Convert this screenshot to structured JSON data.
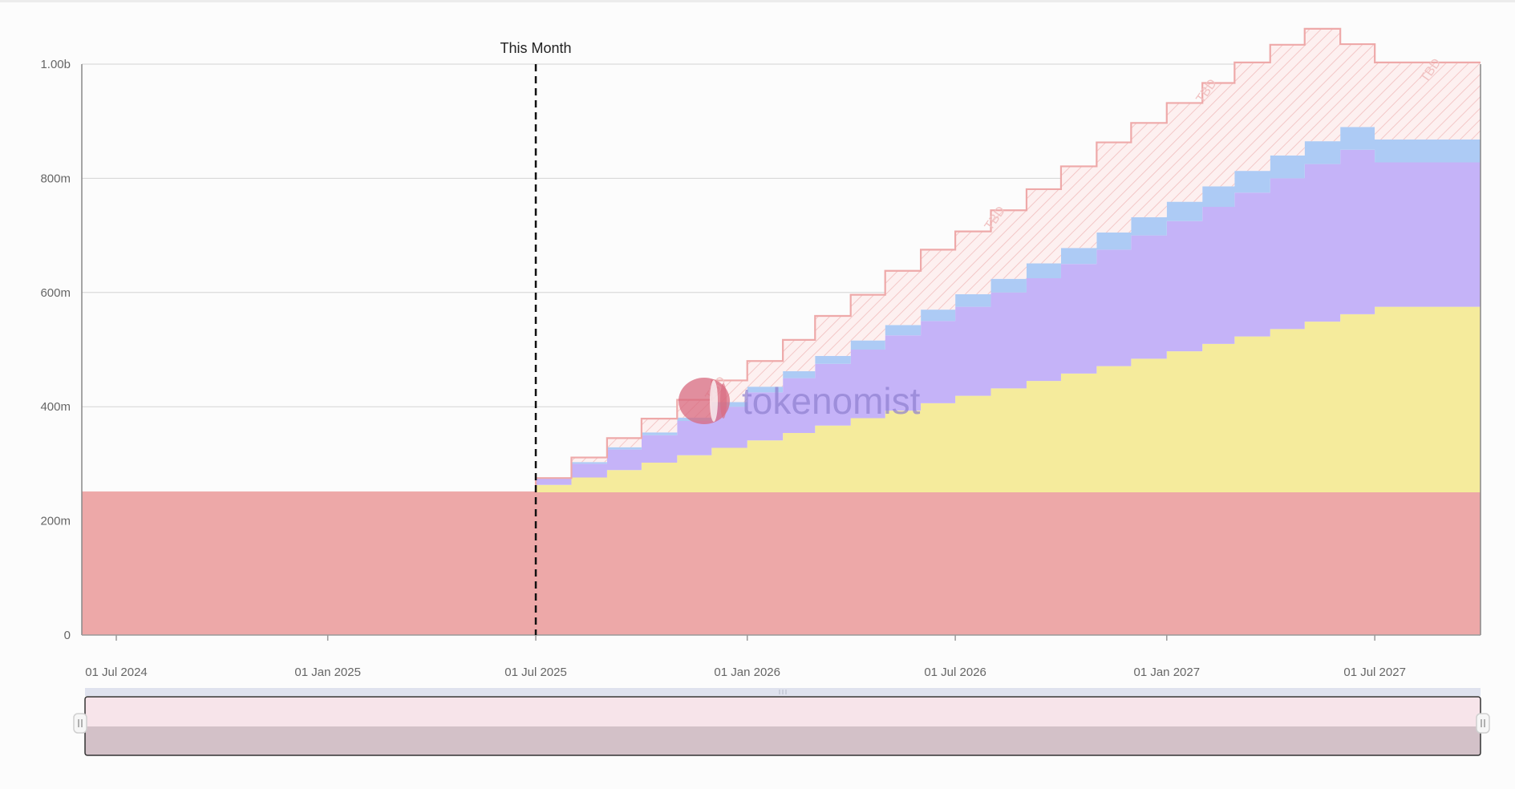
{
  "chart_data": {
    "type": "area",
    "subtype": "stacked-step",
    "watermark": "tokenomist",
    "annotation": {
      "label": "This Month",
      "date": "2025-07-01"
    },
    "y_ticks": [
      "0",
      "200m",
      "400m",
      "600m",
      "800m",
      "1.00b"
    ],
    "ylim": [
      0,
      1000
    ],
    "y_unit": "millions of tokens",
    "x_ticks": [
      "01 Jul 2024",
      "01 Jan 2025",
      "01 Jul 2025",
      "01 Jan 2026",
      "01 Jul 2026",
      "01 Jan 2027",
      "01 Jul 2027"
    ],
    "xlim": [
      "2024-06-01",
      "2027-10-01"
    ],
    "grid": true,
    "tbd_label": "TBD",
    "x": [
      "2024-06-01",
      "2025-07-01",
      "2025-08-01",
      "2025-09-01",
      "2025-10-01",
      "2025-11-01",
      "2025-12-01",
      "2026-01-01",
      "2026-02-01",
      "2026-03-01",
      "2026-04-01",
      "2026-05-01",
      "2026-06-01",
      "2026-07-01",
      "2026-08-01",
      "2026-09-01",
      "2026-10-01",
      "2026-11-01",
      "2026-12-01",
      "2027-01-01",
      "2027-02-01",
      "2027-03-01",
      "2027-04-01",
      "2027-05-01",
      "2027-06-01",
      "2027-07-01"
    ],
    "series": [
      {
        "color": "#eda8a8",
        "values": [
          250,
          250,
          250,
          250,
          250,
          250,
          250,
          250,
          250,
          250,
          250,
          250,
          250,
          250,
          250,
          250,
          250,
          250,
          250,
          250,
          250,
          250,
          250,
          250,
          250,
          250
        ]
      },
      {
        "color": "#f5eb9c",
        "values": [
          0,
          13,
          26,
          39,
          52,
          65,
          78,
          91,
          104,
          117,
          130,
          143,
          156,
          169,
          182,
          195,
          208,
          221,
          234,
          247,
          260,
          273,
          286,
          299,
          312,
          325
        ]
      },
      {
        "color": "#c5b3f8",
        "values": [
          0,
          12,
          24,
          36,
          48,
          60,
          72,
          84,
          96,
          108,
          120,
          132,
          144,
          156,
          168,
          180,
          192,
          204,
          216,
          228,
          240,
          252,
          264,
          276,
          288,
          253
        ]
      },
      {
        "color": "#adcbf5",
        "values": [
          0,
          0,
          3,
          4,
          5,
          6,
          8,
          10,
          12,
          14,
          16,
          18,
          20,
          22,
          24,
          26,
          28,
          30,
          32,
          34,
          36,
          38,
          40,
          40,
          40,
          40
        ]
      },
      {
        "color": "#f6c1c1",
        "pattern": "hatched",
        "values": [
          0,
          0,
          8,
          16,
          24,
          31,
          38,
          45,
          55,
          70,
          80,
          95,
          105,
          110,
          120,
          130,
          143,
          158,
          165,
          173,
          181,
          190,
          194,
          197,
          145,
          135
        ]
      }
    ]
  }
}
